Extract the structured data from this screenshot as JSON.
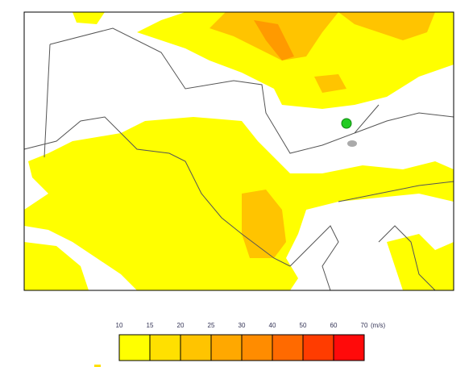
{
  "legend": {
    "ticks": [
      10,
      15,
      20,
      25,
      30,
      40,
      50,
      60,
      70
    ],
    "unit": "(m/s)",
    "colors": [
      "#ffff00",
      "#ffe000",
      "#ffc400",
      "#ffa800",
      "#ff8c00",
      "#ff6a00",
      "#ff3c00",
      "#ff0a0a"
    ]
  }
}
